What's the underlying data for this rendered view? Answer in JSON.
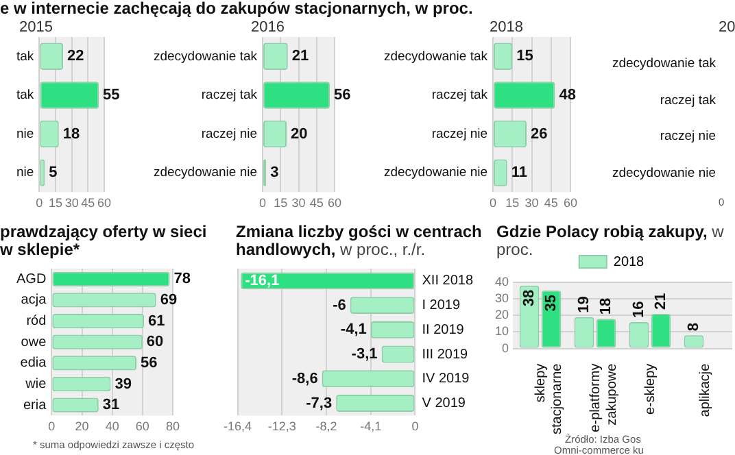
{
  "chart_data": [
    {
      "type": "bar",
      "orientation": "horizontal",
      "title": "2015",
      "annotations": [
        "e w internecie zachęcają do zakupów stacjonarnych, w proc."
      ],
      "categories": [
        "tak",
        "tak",
        "nie",
        "nie"
      ],
      "values": [
        22,
        55,
        18,
        5
      ],
      "colors": [
        "#a5efc5",
        "#2fe082",
        "#a5efc5",
        "#a5efc5"
      ],
      "xlim": [
        0,
        60
      ],
      "xticks": [
        0,
        15,
        30,
        45,
        60
      ],
      "grid": "x",
      "data_labels": true
    },
    {
      "type": "bar",
      "orientation": "horizontal",
      "title": "2016",
      "categories": [
        "zdecydowanie tak",
        "raczej tak",
        "raczej nie",
        "zdecydowanie nie"
      ],
      "values": [
        21,
        56,
        20,
        3
      ],
      "colors": [
        "#a5efc5",
        "#2fe082",
        "#a5efc5",
        "#a5efc5"
      ],
      "xlim": [
        0,
        60
      ],
      "xticks": [
        0,
        15,
        30,
        45,
        60
      ],
      "grid": "x",
      "data_labels": true
    },
    {
      "type": "bar",
      "orientation": "horizontal",
      "title": "2018",
      "categories": [
        "zdecydowanie tak",
        "raczej tak",
        "raczej nie",
        "zdecydowanie nie"
      ],
      "values": [
        15,
        48,
        26,
        11
      ],
      "colors": [
        "#a5efc5",
        "#2fe082",
        "#a5efc5",
        "#a5efc5"
      ],
      "xlim": [
        0,
        60
      ],
      "xticks": [
        0,
        15,
        30,
        45,
        60
      ],
      "grid": "x",
      "data_labels": true
    },
    {
      "type": "other",
      "title": "20",
      "annotations": [
        "0"
      ],
      "categories": [
        "zdecydowanie tak",
        "raczej tak",
        "raczej nie",
        "zdecydowanie nie"
      ]
    },
    {
      "type": "bar",
      "orientation": "horizontal",
      "title": "prawdzający oferty w sieci w sklepie*",
      "annotations": [
        "* suma odpowiedzi zawsze i często"
      ],
      "categories": [
        "AGD",
        "acja",
        "ród",
        "owe",
        "edia",
        "wie",
        "eria"
      ],
      "values": [
        78,
        69,
        61,
        60,
        56,
        39,
        31
      ],
      "colors": [
        "#2fe082",
        "#a5efc5",
        "#a5efc5",
        "#a5efc5",
        "#a5efc5",
        "#a5efc5",
        "#a5efc5"
      ],
      "xlim": [
        0,
        80
      ],
      "xticks": [
        0,
        20,
        40,
        60,
        80
      ],
      "grid": "x",
      "data_labels": true
    },
    {
      "type": "bar",
      "orientation": "horizontal",
      "title": "Zmiana liczby gości w centrach handlowych,",
      "subtitle": "w proc., r./r.",
      "categories": [
        "XII 2018",
        "I 2019",
        "II 2019",
        "III 2019",
        "IV 2019",
        "V 2019"
      ],
      "values": [
        -16.1,
        -6,
        -4.1,
        -3.1,
        -8.6,
        -7.3
      ],
      "value_labels": [
        "-16,1",
        "-6",
        "-4,1",
        "-3,1",
        "-8,6",
        "-7,3"
      ],
      "colors": [
        "#2fe082",
        "#a5efc5",
        "#a5efc5",
        "#a5efc5",
        "#a5efc5",
        "#a5efc5"
      ],
      "xlim": [
        -16.4,
        0
      ],
      "xticks": [
        {
          "value": -16.4,
          "label": "-16,4"
        },
        {
          "value": -12.3,
          "label": "-12,3"
        },
        {
          "value": -8.2,
          "label": "-8,2"
        },
        {
          "value": -4.1,
          "label": "-4,1"
        },
        0
      ],
      "grid": "x"
    },
    {
      "type": "bar",
      "title": "Gdzie Polacy robią zakupy,",
      "subtitle": "w proc.",
      "annotations": [
        "Źródło: Izba Gos",
        "Omni-commerce ku"
      ],
      "categories": [
        "sklepy stacjonarne",
        "e-platformy zakupowe",
        "e-sklepy",
        "aplikacje"
      ],
      "series": [
        {
          "name": "2018",
          "color": "#a5efc5",
          "values": [
            38,
            19,
            16,
            8
          ]
        },
        {
          "color": "#2fe082",
          "values": [
            35,
            18,
            21,
            null
          ]
        }
      ],
      "ylim": [
        0,
        40
      ],
      "yticks": [
        0,
        10,
        20,
        30,
        40
      ],
      "grid": "y",
      "legend": "top",
      "data_labels": true
    }
  ]
}
